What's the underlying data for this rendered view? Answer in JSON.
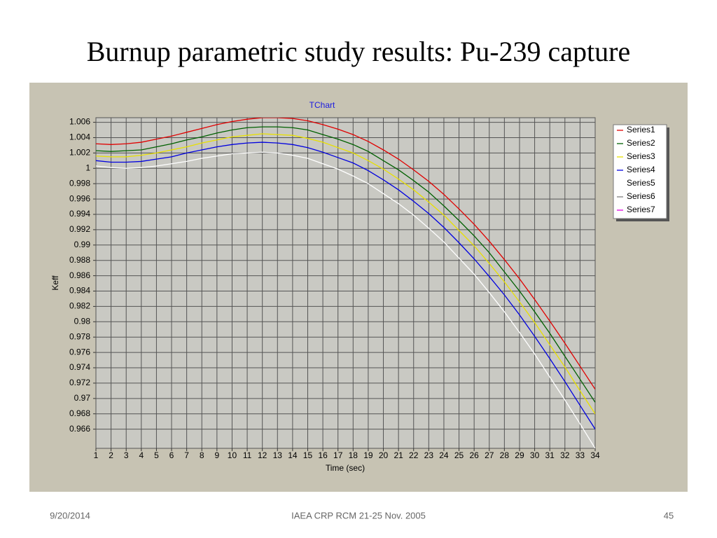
{
  "slide_title": "Burnup parametric study results: Pu-239 capture",
  "footer": {
    "date": "9/20/2014",
    "center": "IAEA CRP RCM 21-25 Nov. 2005",
    "page": "45"
  },
  "chart_data": {
    "type": "line",
    "title": "TChart",
    "xlabel": "Time (sec)",
    "ylabel": "Keff",
    "x": [
      1,
      2,
      3,
      4,
      5,
      6,
      7,
      8,
      9,
      10,
      11,
      12,
      13,
      14,
      15,
      16,
      17,
      18,
      19,
      20,
      21,
      22,
      23,
      24,
      25,
      26,
      27,
      28,
      29,
      30,
      31,
      32,
      33,
      34
    ],
    "xlim": [
      1,
      34
    ],
    "xticks": [
      1,
      2,
      3,
      4,
      5,
      6,
      7,
      8,
      9,
      10,
      11,
      12,
      13,
      14,
      15,
      16,
      17,
      18,
      19,
      20,
      21,
      22,
      23,
      24,
      25,
      26,
      27,
      28,
      29,
      30,
      31,
      32,
      33,
      34
    ],
    "ylim": [
      0.9635,
      1.0066
    ],
    "yticks": [
      0.966,
      0.968,
      0.97,
      0.972,
      0.974,
      0.976,
      0.978,
      0.98,
      0.982,
      0.984,
      0.986,
      0.988,
      0.99,
      0.992,
      0.994,
      0.996,
      0.998,
      1,
      1.002,
      1.004,
      1.006
    ],
    "grid": true,
    "legend": "right",
    "series": [
      {
        "name": "Series1",
        "color": "#e00000",
        "values": [
          1.0032,
          1.0031,
          1.0032,
          1.0034,
          1.0038,
          1.0042,
          1.0047,
          1.0052,
          1.0057,
          1.0061,
          1.0064,
          1.0066,
          1.0066,
          1.0065,
          1.0062,
          1.0057,
          1.0051,
          1.0044,
          1.0035,
          1.0024,
          1.0012,
          0.9998,
          0.9983,
          0.9966,
          0.9947,
          0.9927,
          0.9905,
          0.9881,
          0.9856,
          0.9829,
          0.9801,
          0.9772,
          0.9742,
          0.9712
        ]
      },
      {
        "name": "Series2",
        "color": "#006000",
        "values": [
          1.0023,
          1.0022,
          1.0023,
          1.0024,
          1.0028,
          1.0032,
          1.0037,
          1.0041,
          1.0046,
          1.005,
          1.0053,
          1.0054,
          1.0054,
          1.0053,
          1.005,
          1.0044,
          1.0038,
          1.0031,
          1.0022,
          1.001,
          0.9998,
          0.9984,
          0.9969,
          0.9951,
          0.9932,
          0.9912,
          0.989,
          0.9865,
          0.984,
          0.9813,
          0.9785,
          0.9755,
          0.9725,
          0.9695
        ]
      },
      {
        "name": "Series3",
        "color": "#e8e000",
        "values": [
          1.0016,
          1.0015,
          1.0015,
          1.0017,
          1.002,
          1.0024,
          1.0028,
          1.0033,
          1.0037,
          1.0041,
          1.0043,
          1.0045,
          1.0044,
          1.0043,
          1.0039,
          1.0034,
          1.0027,
          1.002,
          1.001,
          0.9999,
          0.9986,
          0.9972,
          0.9956,
          0.9939,
          0.9919,
          0.9899,
          0.9876,
          0.9852,
          0.9826,
          0.9799,
          0.977,
          0.9741,
          0.971,
          0.968
        ]
      },
      {
        "name": "Series4",
        "color": "#0000e0",
        "values": [
          1.001,
          1.0008,
          1.0008,
          1.0009,
          1.0012,
          1.0015,
          1.002,
          1.0024,
          1.0028,
          1.0031,
          1.0033,
          1.0034,
          1.0033,
          1.0031,
          1.0027,
          1.0021,
          1.0014,
          1.0007,
          0.9997,
          0.9985,
          0.9972,
          0.9957,
          0.9941,
          0.9923,
          0.9903,
          0.9882,
          0.9859,
          0.9835,
          0.9809,
          0.9781,
          0.9752,
          0.9722,
          0.9691,
          0.966
        ]
      },
      {
        "name": "Series5",
        "color": "#ffffff",
        "values": [
          1.0003,
          1.0001,
          1.0,
          1.0001,
          1.0003,
          1.0006,
          1.0009,
          1.0013,
          1.0016,
          1.0019,
          1.002,
          1.0021,
          1.002,
          1.0017,
          1.0013,
          1.0006,
          0.9999,
          0.999,
          0.998,
          0.9967,
          0.9954,
          0.9939,
          0.9922,
          0.9904,
          0.9883,
          0.9862,
          0.9838,
          0.9813,
          0.9786,
          0.9758,
          0.9728,
          0.9698,
          0.9667,
          0.9635
        ]
      },
      {
        "name": "Series6",
        "color": "#808080"
      },
      {
        "name": "Series7",
        "color": "#e000e0"
      }
    ]
  }
}
